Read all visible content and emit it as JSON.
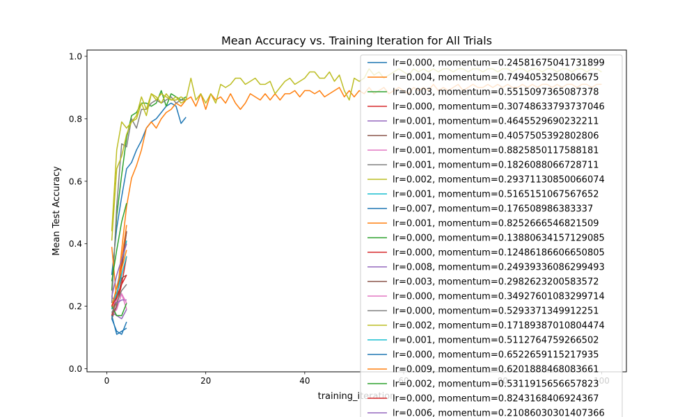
{
  "chart_data": {
    "type": "line",
    "title": "Mean Accuracy vs. Training Iteration for All Trials",
    "xlabel": "training_iteration",
    "ylabel": "Mean Test Accuracy",
    "xlim": [
      -4,
      105
    ],
    "ylim": [
      -0.01,
      1.02
    ],
    "xticks": [
      0,
      20,
      40,
      60,
      80,
      100
    ],
    "yticks": [
      0.0,
      0.2,
      0.4,
      0.6,
      0.8,
      1.0
    ],
    "xtick_labels": [
      "0",
      "20",
      "40",
      "60",
      "80",
      "100"
    ],
    "ytick_labels": [
      "0.0",
      "0.2",
      "0.4",
      "0.6",
      "0.8",
      "1.0"
    ],
    "grid": false,
    "legend_position": "top-right",
    "series": [
      {
        "name": "lr=0.000, momentum=0.24581675041731899",
        "color": "#1f77b4",
        "x": [
          1,
          2,
          3,
          4,
          5,
          6,
          7,
          8,
          9,
          10,
          11,
          12,
          13,
          14,
          15,
          16
        ],
        "y": [
          0.3,
          0.45,
          0.55,
          0.64,
          0.66,
          0.7,
          0.73,
          0.77,
          0.79,
          0.8,
          0.82,
          0.84,
          0.85,
          0.84,
          0.785,
          0.805
        ]
      },
      {
        "name": "lr=0.004, momentum=0.7494053250806675",
        "color": "#ff7f0e",
        "x": [
          1,
          2,
          3,
          4,
          5,
          6,
          7,
          8,
          9,
          10,
          11,
          12,
          13,
          14,
          15,
          16,
          17,
          18,
          19,
          20,
          21,
          22,
          23,
          24,
          25,
          26,
          27,
          28,
          29,
          30,
          31,
          32,
          33,
          34,
          35,
          36,
          37,
          38,
          39,
          40,
          41,
          42,
          43,
          44,
          45,
          46,
          47,
          48,
          49,
          50,
          51,
          52,
          53,
          54,
          55,
          56,
          57,
          58,
          59,
          60,
          61,
          62,
          63,
          64,
          65,
          66,
          67,
          68,
          69,
          70,
          71,
          72,
          73,
          74,
          75,
          76,
          77,
          78,
          79,
          80,
          81,
          82,
          83,
          84,
          85,
          86,
          87,
          88,
          89,
          90,
          91,
          92,
          93,
          94,
          95,
          96,
          97,
          98,
          99,
          100
        ],
        "y": [
          0.19,
          0.22,
          0.38,
          0.52,
          0.61,
          0.65,
          0.7,
          0.77,
          0.79,
          0.77,
          0.8,
          0.82,
          0.83,
          0.85,
          0.84,
          0.86,
          0.87,
          0.84,
          0.88,
          0.83,
          0.88,
          0.86,
          0.87,
          0.85,
          0.88,
          0.85,
          0.83,
          0.85,
          0.88,
          0.87,
          0.86,
          0.88,
          0.86,
          0.88,
          0.86,
          0.88,
          0.88,
          0.89,
          0.87,
          0.89,
          0.89,
          0.88,
          0.89,
          0.87,
          0.88,
          0.89,
          0.9,
          0.87,
          0.89,
          0.87,
          0.89,
          0.88,
          0.9,
          0.88,
          0.89,
          0.9,
          0.88,
          0.89,
          0.9,
          0.89,
          0.88,
          0.9,
          0.89,
          0.9,
          0.89,
          0.91,
          0.89,
          0.9,
          0.89,
          0.9,
          0.91,
          0.89,
          0.9,
          0.91,
          0.9,
          0.9,
          0.91,
          0.9,
          0.91,
          0.9,
          0.91,
          0.9,
          0.9,
          0.91,
          0.9,
          0.91,
          0.9,
          0.91,
          0.91,
          0.9,
          0.91,
          0.9,
          0.91,
          0.91,
          0.9,
          0.91,
          0.91,
          0.9,
          0.91,
          0.91
        ]
      },
      {
        "name": "lr=0.003, momentum=0.5515097365087378",
        "color": "#2ca02c",
        "x": [
          1,
          2,
          3,
          4,
          5,
          6,
          7,
          8,
          9,
          10,
          11,
          12,
          13,
          14,
          15,
          16
        ],
        "y": [
          0.25,
          0.49,
          0.62,
          0.74,
          0.81,
          0.82,
          0.85,
          0.85,
          0.84,
          0.85,
          0.89,
          0.84,
          0.88,
          0.87,
          0.86,
          0.87
        ]
      },
      {
        "name": "lr=0.000, momentum=0.30748633793737046",
        "color": "#d62728",
        "x": [
          1,
          2,
          3,
          4
        ],
        "y": [
          0.17,
          0.2,
          0.27,
          0.36
        ]
      },
      {
        "name": "lr=0.001, momentum=0.4645529690232211",
        "color": "#9467bd",
        "x": [
          1,
          2,
          3,
          4
        ],
        "y": [
          0.18,
          0.17,
          0.16,
          0.19
        ]
      },
      {
        "name": "lr=0.001, momentum=0.4057505392802806",
        "color": "#8c564b",
        "x": [
          1,
          2,
          3,
          4
        ],
        "y": [
          0.16,
          0.2,
          0.29,
          0.3
        ]
      },
      {
        "name": "lr=0.001, momentum=0.8825850117588181",
        "color": "#e377c2",
        "x": [
          1,
          2,
          3,
          4
        ],
        "y": [
          0.17,
          0.19,
          0.24,
          0.19
        ]
      },
      {
        "name": "lr=0.001, momentum=0.1826088066728711",
        "color": "#7f7f7f",
        "x": [
          1,
          2,
          3,
          4,
          5,
          6,
          7,
          8,
          9,
          10,
          11,
          12,
          13,
          14,
          15,
          16
        ],
        "y": [
          0.21,
          0.52,
          0.72,
          0.71,
          0.8,
          0.77,
          0.83,
          0.83,
          0.85,
          0.86,
          0.85,
          0.86,
          0.87,
          0.85,
          0.86,
          0.86
        ]
      },
      {
        "name": "lr=0.002, momentum=0.29371130850066074",
        "color": "#bcbd22",
        "x": [
          1,
          2,
          3,
          4,
          5,
          6,
          7,
          8,
          9,
          10,
          11,
          12,
          13,
          14,
          15,
          16,
          17,
          18,
          19,
          20,
          21,
          22,
          23,
          24,
          25,
          26,
          27,
          28,
          29,
          30,
          31,
          32,
          33,
          34,
          35,
          36,
          37,
          38,
          39,
          40,
          41,
          42,
          43,
          44,
          45,
          46,
          47,
          48,
          49,
          50,
          51,
          52,
          53,
          54,
          55,
          56,
          57,
          58,
          59,
          60,
          61,
          62,
          63,
          64,
          65,
          66,
          67,
          68,
          69,
          70,
          71,
          72,
          73,
          74,
          75,
          76,
          77,
          78,
          79,
          80,
          81,
          82,
          83,
          84,
          85,
          86,
          87,
          88,
          89,
          90,
          91,
          92,
          93,
          94,
          95,
          96,
          97,
          98,
          99,
          100
        ],
        "y": [
          0.44,
          0.7,
          0.79,
          0.77,
          0.79,
          0.81,
          0.87,
          0.83,
          0.88,
          0.87,
          0.85,
          0.88,
          0.86,
          0.87,
          0.85,
          0.86,
          0.93,
          0.86,
          0.88,
          0.85,
          0.88,
          0.85,
          0.91,
          0.9,
          0.91,
          0.93,
          0.93,
          0.91,
          0.92,
          0.93,
          0.91,
          0.91,
          0.92,
          0.88,
          0.9,
          0.92,
          0.93,
          0.91,
          0.92,
          0.93,
          0.95,
          0.95,
          0.93,
          0.93,
          0.95,
          0.92,
          0.94,
          0.89,
          0.86,
          0.93,
          0.92,
          0.93,
          0.96,
          0.94,
          0.95,
          0.93,
          0.94,
          0.95,
          0.96,
          0.95,
          0.94,
          0.96,
          0.95,
          0.96,
          0.95,
          0.96,
          0.95,
          0.96,
          0.96,
          0.95,
          0.96,
          0.96,
          0.95,
          0.96,
          0.96,
          0.95,
          0.96,
          0.96,
          0.95,
          0.96,
          0.96,
          0.95,
          0.96,
          0.96,
          0.95,
          0.96,
          0.96,
          0.95,
          0.96,
          0.96,
          0.95,
          0.96,
          0.96,
          0.95,
          0.96,
          0.96,
          0.95,
          0.96,
          0.96,
          0.95
        ]
      },
      {
        "name": "lr=0.001, momentum=0.5165151067567652",
        "color": "#17becf",
        "x": [
          1,
          2,
          3,
          4
        ],
        "y": [
          0.19,
          0.26,
          0.33,
          0.41
        ]
      },
      {
        "name": "lr=0.007, momentum=0.176508986383337",
        "color": "#1f77b4",
        "x": [
          1,
          2,
          3,
          4
        ],
        "y": [
          0.16,
          0.12,
          0.11,
          0.15
        ]
      },
      {
        "name": "lr=0.001, momentum=0.8252666546821509",
        "color": "#ff7f0e",
        "x": [
          1,
          2,
          3,
          4
        ],
        "y": [
          0.39,
          0.22,
          0.35,
          0.46
        ]
      },
      {
        "name": "lr=0.000, momentum=0.13880634157129085",
        "color": "#2ca02c",
        "x": [
          1,
          2,
          3,
          4
        ],
        "y": [
          0.2,
          0.17,
          0.17,
          0.21
        ]
      },
      {
        "name": "lr=0.000, momentum=0.12486186606650805",
        "color": "#d62728",
        "x": [
          1,
          2,
          3,
          4
        ],
        "y": [
          0.17,
          0.23,
          0.33,
          0.44
        ]
      },
      {
        "name": "lr=0.008, momentum=0.24939336086299493",
        "color": "#9467bd",
        "x": [
          1,
          2,
          3,
          4
        ],
        "y": [
          0.23,
          0.21,
          0.22,
          0.22
        ]
      },
      {
        "name": "lr=0.003, momentum=0.2982623200583572",
        "color": "#8c564b",
        "x": [
          1,
          2,
          3,
          4
        ],
        "y": [
          0.16,
          0.23,
          0.32,
          0.44
        ]
      },
      {
        "name": "lr=0.000, momentum=0.34927601083299714",
        "color": "#e377c2",
        "x": [
          1,
          2,
          3,
          4
        ],
        "y": [
          0.2,
          0.22,
          0.24,
          0.21
        ]
      },
      {
        "name": "lr=0.000, momentum=0.5293371349912251",
        "color": "#7f7f7f",
        "x": [
          1,
          2,
          3,
          4
        ],
        "y": [
          0.18,
          0.21,
          0.25,
          0.27
        ]
      },
      {
        "name": "lr=0.002, momentum=0.17189387010804474",
        "color": "#bcbd22",
        "x": [
          1,
          2,
          3,
          4,
          5,
          6,
          7,
          8,
          9,
          10,
          11,
          12,
          13,
          14,
          15,
          16
        ],
        "y": [
          0.41,
          0.64,
          0.68,
          0.75,
          0.79,
          0.8,
          0.85,
          0.81,
          0.88,
          0.86,
          0.88,
          0.87,
          0.86,
          0.86,
          0.87,
          0.86
        ]
      },
      {
        "name": "lr=0.001, momentum=0.5112764759266502",
        "color": "#17becf",
        "x": [
          1,
          2,
          3,
          4
        ],
        "y": [
          0.2,
          0.24,
          0.3,
          0.36
        ]
      },
      {
        "name": "lr=0.000, momentum=0.6522659115217935",
        "color": "#1f77b4",
        "x": [
          1,
          2,
          3,
          4
        ],
        "y": [
          0.17,
          0.11,
          0.12,
          0.13
        ]
      },
      {
        "name": "lr=0.009, momentum=0.6201888468083661",
        "color": "#ff7f0e",
        "x": [
          1,
          2,
          3,
          4
        ],
        "y": [
          0.2,
          0.26,
          0.32,
          0.38
        ]
      },
      {
        "name": "lr=0.002, momentum=0.5311915656657823",
        "color": "#2ca02c",
        "x": [
          1,
          2,
          3,
          4
        ],
        "y": [
          0.28,
          0.38,
          0.47,
          0.53
        ]
      },
      {
        "name": "lr=0.000, momentum=0.8243168406924367",
        "color": "#d62728",
        "x": [
          1,
          2,
          3,
          4
        ],
        "y": [
          0.2,
          0.23,
          0.27,
          0.3
        ]
      },
      {
        "name": "lr=0.006, momentum=0.21086030301407366",
        "color": "#9467bd",
        "x": [
          1,
          2,
          3,
          4
        ],
        "y": [
          0.23,
          0.3,
          0.35,
          0.4
        ]
      }
    ]
  }
}
